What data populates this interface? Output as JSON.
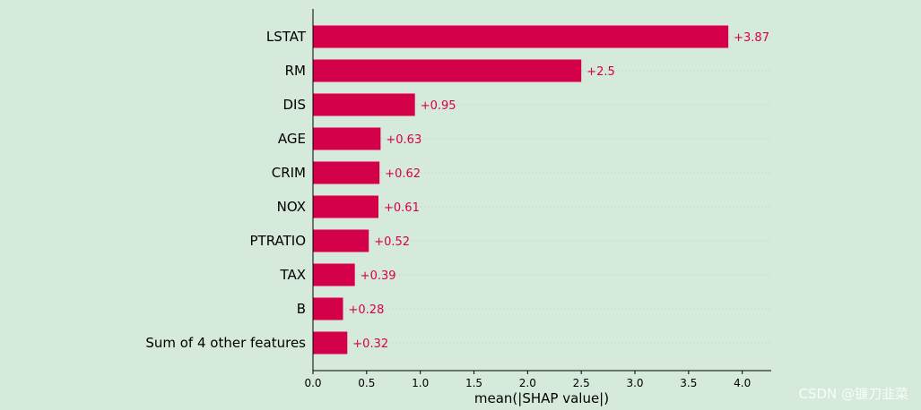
{
  "chart_data": {
    "type": "bar",
    "orientation": "horizontal",
    "categories": [
      "LSTAT",
      "RM",
      "DIS",
      "AGE",
      "CRIM",
      "NOX",
      "PTRATIO",
      "TAX",
      "B",
      "Sum of 4 other features"
    ],
    "values": [
      3.87,
      2.5,
      0.95,
      0.63,
      0.62,
      0.61,
      0.52,
      0.39,
      0.28,
      0.32
    ],
    "value_labels": [
      "+3.87",
      "+2.5",
      "+0.95",
      "+0.63",
      "+0.62",
      "+0.61",
      "+0.52",
      "+0.39",
      "+0.28",
      "+0.32"
    ],
    "title": "",
    "xlabel": "mean(|SHAP value|)",
    "ylabel": "",
    "xlim": [
      0,
      4.27
    ],
    "xticks": [
      0.0,
      0.5,
      1.0,
      1.5,
      2.0,
      2.5,
      3.0,
      3.5,
      4.0
    ],
    "xtick_labels": [
      "0.0",
      "0.5",
      "1.0",
      "1.5",
      "2.0",
      "2.5",
      "3.0",
      "3.5",
      "4.0"
    ],
    "grid": "dotted horizontal guide lines",
    "bar_color": "#d5004a",
    "label_color": "#d5004a",
    "text_color": "#000000",
    "background": "#d5eadb"
  },
  "watermark": "CSDN @镰刀韭菜"
}
